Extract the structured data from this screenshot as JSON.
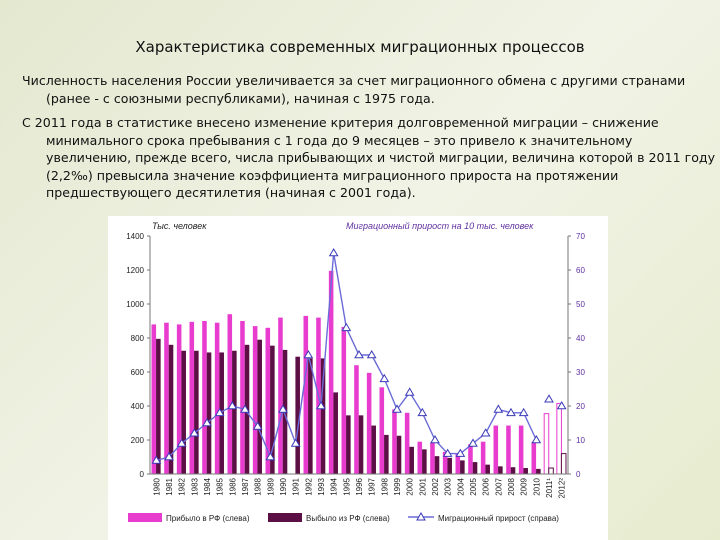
{
  "slide": {
    "title": "Характеристика современных миграционных процессов",
    "paragraph1": "Численность населения России увеличивается за счет миграционного обмена с другими странами (ранее - с союзными республиками), начиная с 1975 года.",
    "paragraph2": "С 2011 года в статистике внесено изменение критерия долговременной миграции – снижение минимального срока пребывания с 1 года до 9 месяцев – это привело к значительному увеличению, прежде всего, числа прибывающих и чистой миграции, величина которой в 2011 году (2,2‰) превысила значение коэффициента миграционного прироста на протяжении предшествующего десятилетия (начиная с 2001 года)."
  },
  "colors": {
    "arrivals": "#e83ccf",
    "departures": "#5c0f45",
    "growth_line": "#6b6bd9",
    "growth_marker_edge": "#3a3ab8",
    "right_axis_text": "#6030a0"
  },
  "chart_data": {
    "type": "bar",
    "left_axis_title": "Тыс. человек",
    "right_axis_title": "Миграционный прирост на 10 тыс. человек",
    "left_ylim": [
      0,
      1400
    ],
    "left_ticks": [
      0,
      200,
      400,
      600,
      800,
      1000,
      1200,
      1400
    ],
    "right_ylim": [
      0,
      70
    ],
    "right_ticks": [
      0,
      10,
      20,
      30,
      40,
      50,
      60,
      70
    ],
    "grid": false,
    "legend_position": "bottom",
    "categories": [
      "1980",
      "1981",
      "1982",
      "1983",
      "1984",
      "1985",
      "1986",
      "1987",
      "1988",
      "1989",
      "1990",
      "1991",
      "1992",
      "1993",
      "1994",
      "1995",
      "1996",
      "1997",
      "1998",
      "1999",
      "2000",
      "2001",
      "2002",
      "2003",
      "2004",
      "2005",
      "2006",
      "2007",
      "2008",
      "2009",
      "2010",
      "2011¹",
      "2012²"
    ],
    "series": [
      {
        "name": "Прибыло в РФ (слева)",
        "kind": "bar",
        "values": [
          880,
          890,
          880,
          895,
          900,
          890,
          940,
          900,
          870,
          860,
          920,
          null,
          930,
          920,
          1195,
          865,
          640,
          595,
          510,
          380,
          360,
          190,
          185,
          130,
          120,
          175,
          190,
          285,
          285,
          285,
          190,
          355,
          415
        ]
      },
      {
        "name": "Выбыло из РФ (слева)",
        "kind": "bar",
        "values": [
          795,
          760,
          725,
          725,
          715,
          715,
          725,
          760,
          790,
          755,
          730,
          690,
          680,
          680,
          480,
          345,
          345,
          285,
          230,
          225,
          160,
          145,
          105,
          95,
          80,
          70,
          55,
          45,
          40,
          35,
          30,
          35,
          120
        ]
      },
      {
        "name": "Миграционный прирост (справа)",
        "kind": "line",
        "values": [
          4,
          5,
          9,
          12,
          15,
          18,
          20,
          19,
          14,
          5,
          19,
          9,
          35,
          20,
          65,
          43,
          35,
          35,
          28,
          19,
          24,
          18,
          10,
          6,
          6,
          9,
          12,
          19,
          18,
          18,
          10,
          22,
          20
        ]
      }
    ]
  }
}
